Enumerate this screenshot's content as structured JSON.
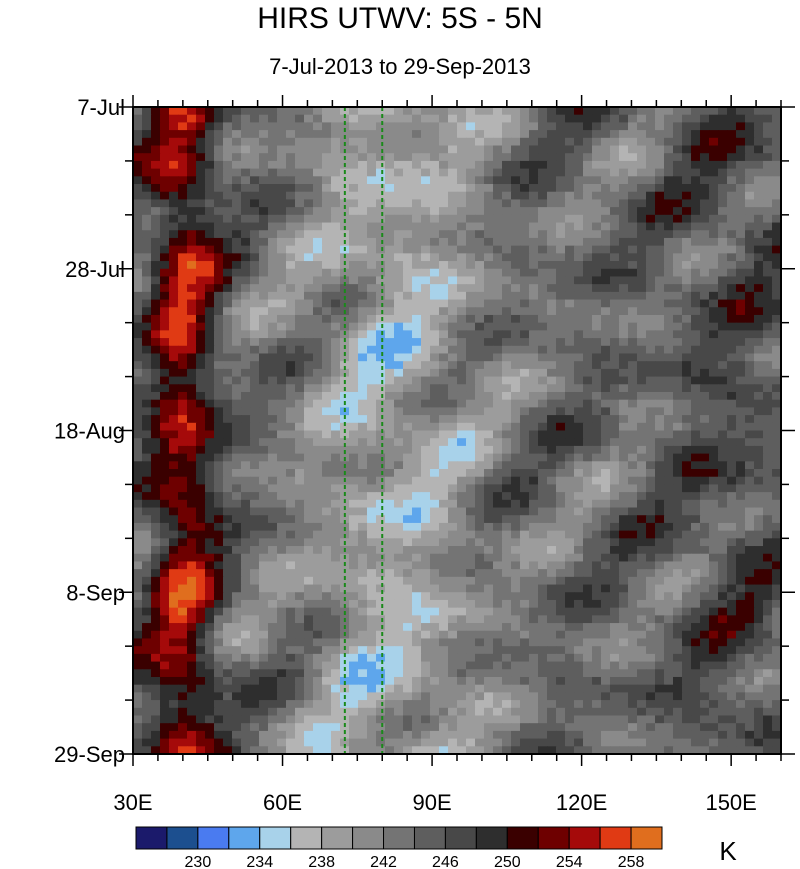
{
  "chart_data": {
    "type": "heatmap",
    "title": "HIRS UTWV: 5S - 5N",
    "subtitle": "7-Jul-2013 to 29-Sep-2013",
    "xlabel": "",
    "ylabel": "",
    "x_range": [
      30,
      160
    ],
    "x_ticks": [
      "30E",
      "60E",
      "90E",
      "120E",
      "150E"
    ],
    "x_tick_values": [
      30,
      60,
      90,
      120,
      150
    ],
    "y_ticks": [
      "7-Jul",
      "28-Jul",
      "18-Aug",
      "8-Sep",
      "29-Sep"
    ],
    "y_range_days": [
      0,
      84
    ],
    "reference_lines_lon": [
      72.5,
      80
    ],
    "colorbar": {
      "unit": "K",
      "labels": [
        "230",
        "234",
        "238",
        "242",
        "246",
        "250",
        "254",
        "258"
      ],
      "colors": [
        "#1b1a6b",
        "#1c4f8f",
        "#4a7bf0",
        "#5ea6ec",
        "#a8d2ea",
        "#b4b4b4",
        "#9c9c9c",
        "#8a8a8a",
        "#747474",
        "#5e5e5e",
        "#484848",
        "#2e2e2e",
        "#3a0000",
        "#6e0000",
        "#a50a0a",
        "#e03a14",
        "#e06e1e"
      ]
    }
  }
}
